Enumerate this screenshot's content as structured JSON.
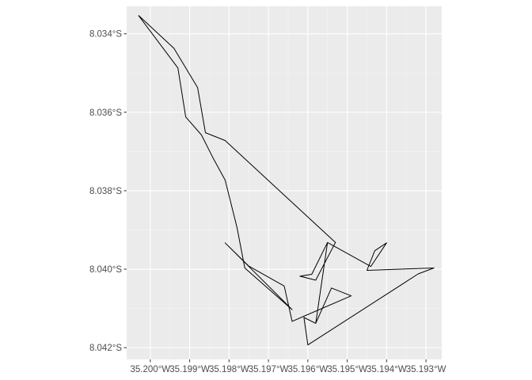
{
  "chart_data": {
    "type": "line",
    "title": "",
    "xlabel": "",
    "ylabel": "",
    "xlim": [
      -35.2006,
      -35.1926
    ],
    "ylim": [
      -8.0423,
      -8.0333
    ],
    "x_ticks": [
      {
        "value": -35.2,
        "label": "35.200°W"
      },
      {
        "value": -35.199,
        "label": "35.199°W"
      },
      {
        "value": -35.198,
        "label": "35.198°W"
      },
      {
        "value": -35.197,
        "label": "35.197°W"
      },
      {
        "value": -35.196,
        "label": "35.196°W"
      },
      {
        "value": -35.195,
        "label": "35.195°W"
      },
      {
        "value": -35.194,
        "label": "35.194°W"
      },
      {
        "value": -35.193,
        "label": "35.193°W"
      }
    ],
    "y_ticks": [
      {
        "value": -8.034,
        "label": "8.034°S"
      },
      {
        "value": -8.036,
        "label": "8.036°S"
      },
      {
        "value": -8.038,
        "label": "8.038°S"
      },
      {
        "value": -8.04,
        "label": "8.040°S"
      },
      {
        "value": -8.042,
        "label": "8.042°S"
      }
    ],
    "grid": true,
    "series": [
      {
        "color": "#000000",
        "points": [
          [
            -35.2003,
            -8.03353
          ],
          [
            -35.1994,
            -8.03437
          ],
          [
            -35.1988,
            -8.03537
          ],
          [
            -35.1986,
            -8.03652
          ],
          [
            -35.1981,
            -8.03672
          ],
          [
            -35.1953,
            -8.03932
          ],
          [
            -35.1958,
            -8.04028
          ],
          [
            -35.1962,
            -8.04018
          ],
          [
            -35.1959,
            -8.04013
          ],
          [
            -35.1955,
            -8.03932
          ],
          [
            -35.1958,
            -8.04138
          ],
          [
            -35.1954,
            -8.04048
          ],
          [
            -35.1949,
            -8.04068
          ],
          [
            -35.1964,
            -8.04133
          ],
          [
            -35.1966,
            -8.04043
          ],
          [
            -35.1975,
            -8.03992
          ],
          [
            -35.1981,
            -8.03933
          ],
          [
            -35.1964,
            -8.04103
          ],
          [
            -35.1976,
            -8.03997
          ],
          [
            -35.1978,
            -8.03893
          ],
          [
            -35.1981,
            -8.03773
          ],
          [
            -35.1984,
            -8.03718
          ],
          [
            -35.1987,
            -8.03658
          ],
          [
            -35.1991,
            -8.03612
          ],
          [
            -35.1993,
            -8.03487
          ],
          [
            -35.2003,
            -8.03353
          ]
        ]
      },
      {
        "color": "#000000",
        "points": [
          [
            -35.1955,
            -8.03932
          ],
          [
            -35.1944,
            -8.03993
          ],
          [
            -35.194,
            -8.03933
          ],
          [
            -35.1943,
            -8.03953
          ],
          [
            -35.1945,
            -8.04003
          ],
          [
            -35.1928,
            -8.03997
          ],
          [
            -35.1932,
            -8.04012
          ],
          [
            -35.196,
            -8.04193
          ],
          [
            -35.1961,
            -8.04123
          ],
          [
            -35.1958,
            -8.04138
          ]
        ]
      }
    ]
  }
}
